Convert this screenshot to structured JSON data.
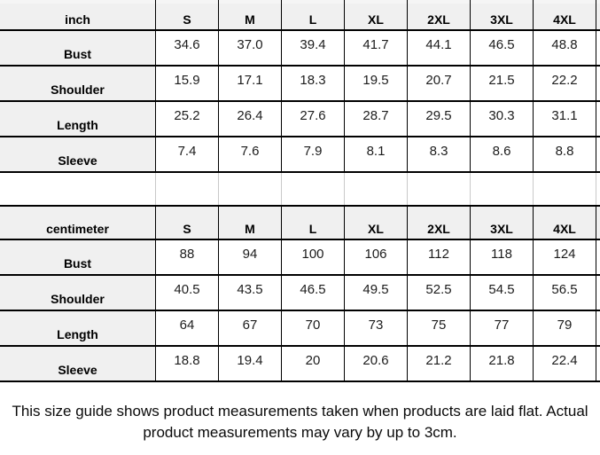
{
  "colors": {
    "header_cell_bg": "#f0f0f0",
    "grid_line": "#000000",
    "spacer_grid_line": "#c9c9c9",
    "value_text": "#1c1c1c"
  },
  "chart_data": [
    {
      "type": "table",
      "title": "inch size table",
      "unit": "inch",
      "columns": [
        "S",
        "M",
        "L",
        "XL",
        "2XL",
        "3XL",
        "4XL"
      ],
      "rows": [
        {
          "label": "Bust",
          "values": [
            "34.6",
            "37.0",
            "39.4",
            "41.7",
            "44.1",
            "46.5",
            "48.8"
          ]
        },
        {
          "label": "Shoulder",
          "values": [
            "15.9",
            "17.1",
            "18.3",
            "19.5",
            "20.7",
            "21.5",
            "22.2"
          ]
        },
        {
          "label": "Length",
          "values": [
            "25.2",
            "26.4",
            "27.6",
            "28.7",
            "29.5",
            "30.3",
            "31.1"
          ]
        },
        {
          "label": "Sleeve",
          "values": [
            "7.4",
            "7.6",
            "7.9",
            "8.1",
            "8.3",
            "8.6",
            "8.8"
          ]
        }
      ]
    },
    {
      "type": "table",
      "title": "centimeter size table",
      "unit": "centimeter",
      "columns": [
        "S",
        "M",
        "L",
        "XL",
        "2XL",
        "3XL",
        "4XL"
      ],
      "rows": [
        {
          "label": "Bust",
          "values": [
            "88",
            "94",
            "100",
            "106",
            "112",
            "118",
            "124"
          ]
        },
        {
          "label": "Shoulder",
          "values": [
            "40.5",
            "43.5",
            "46.5",
            "49.5",
            "52.5",
            "54.5",
            "56.5"
          ]
        },
        {
          "label": "Length",
          "values": [
            "64",
            "67",
            "70",
            "73",
            "75",
            "77",
            "79"
          ]
        },
        {
          "label": "Sleeve",
          "values": [
            "18.8",
            "19.4",
            "20",
            "20.6",
            "21.2",
            "21.8",
            "22.4"
          ]
        }
      ]
    }
  ],
  "footer": {
    "note": "This size guide shows product measurements taken when products are laid flat. Actual product measurements may vary by up to 3cm."
  }
}
